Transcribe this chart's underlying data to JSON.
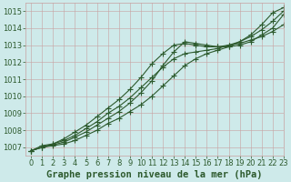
{
  "title": "Graphe pression niveau de la mer (hPa)",
  "bg_color": "#ceeaea",
  "grid_color": "#c8a0a0",
  "line_color": "#2d5a2d",
  "xlim": [
    -0.5,
    23
  ],
  "ylim": [
    1006.5,
    1015.5
  ],
  "yticks": [
    1007,
    1008,
    1009,
    1010,
    1011,
    1012,
    1013,
    1014,
    1015
  ],
  "xticks": [
    0,
    1,
    2,
    3,
    4,
    5,
    6,
    7,
    8,
    9,
    10,
    11,
    12,
    13,
    14,
    15,
    16,
    17,
    18,
    19,
    20,
    21,
    22,
    23
  ],
  "series": [
    [
      1006.8,
      1007.0,
      1007.1,
      1007.2,
      1007.4,
      1007.7,
      1008.0,
      1008.4,
      1008.7,
      1009.1,
      1009.5,
      1010.0,
      1010.6,
      1011.2,
      1011.8,
      1012.2,
      1012.5,
      1012.7,
      1012.9,
      1013.2,
      1013.6,
      1014.2,
      1014.9,
      1015.2
    ],
    [
      1006.8,
      1007.0,
      1007.15,
      1007.3,
      1007.6,
      1007.9,
      1008.3,
      1008.7,
      1009.1,
      1009.6,
      1010.2,
      1010.9,
      1011.8,
      1012.6,
      1013.2,
      1013.1,
      1013.0,
      1012.9,
      1012.9,
      1013.0,
      1013.2,
      1013.6,
      1014.0,
      1014.8
    ],
    [
      1006.8,
      1007.1,
      1007.2,
      1007.5,
      1007.9,
      1008.3,
      1008.8,
      1009.3,
      1009.8,
      1010.4,
      1011.1,
      1011.9,
      1012.5,
      1013.0,
      1013.1,
      1013.0,
      1012.9,
      1012.9,
      1013.0,
      1013.1,
      1013.3,
      1013.5,
      1013.8,
      1014.2
    ],
    [
      1006.8,
      1007.0,
      1007.2,
      1007.4,
      1007.7,
      1008.1,
      1008.5,
      1009.0,
      1009.4,
      1009.9,
      1010.5,
      1011.1,
      1011.7,
      1012.2,
      1012.5,
      1012.6,
      1012.7,
      1012.8,
      1013.0,
      1013.2,
      1013.5,
      1013.9,
      1014.4,
      1015.0
    ]
  ],
  "marker": "+",
  "markersize": 4,
  "linewidth": 0.8,
  "title_fontsize": 7.5,
  "tick_fontsize": 6,
  "title_fontweight": "bold"
}
